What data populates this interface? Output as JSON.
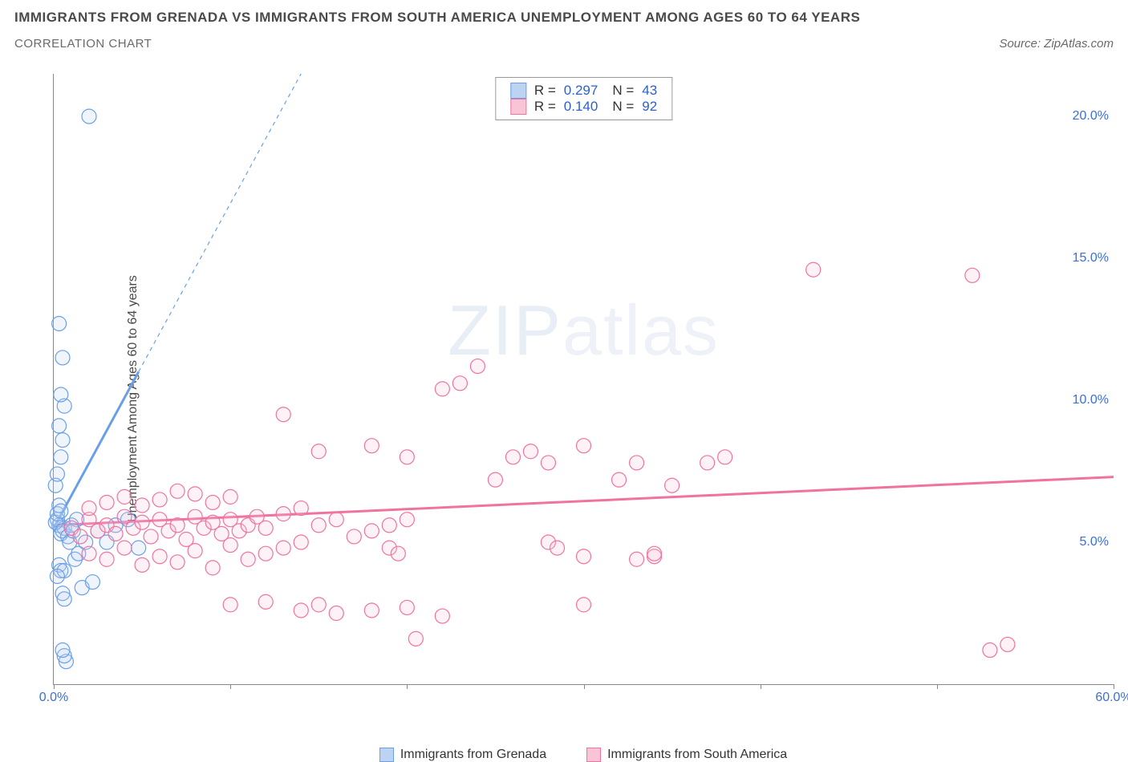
{
  "title": "IMMIGRANTS FROM GRENADA VS IMMIGRANTS FROM SOUTH AMERICA UNEMPLOYMENT AMONG AGES 60 TO 64 YEARS",
  "subtitle": "CORRELATION CHART",
  "source": "Source: ZipAtlas.com",
  "ylabel": "Unemployment Among Ages 60 to 64 years",
  "watermark_a": "ZIP",
  "watermark_b": "atlas",
  "chart": {
    "type": "scatter",
    "xlim": [
      0,
      60
    ],
    "ylim": [
      0,
      21.5
    ],
    "xticks": [
      0,
      10,
      20,
      30,
      40,
      50,
      60
    ],
    "xtick_labels": [
      "0.0%",
      "",
      "",
      "",
      "",
      "",
      "60.0%"
    ],
    "yticks": [
      5,
      10,
      15,
      20
    ],
    "ytick_labels": [
      "5.0%",
      "10.0%",
      "15.0%",
      "20.0%"
    ],
    "background_color": "#ffffff",
    "axis_color": "#888888",
    "tick_label_color": "#3b6fd6",
    "marker_radius": 9,
    "series": [
      {
        "name": "Immigrants from Grenada",
        "color": "#6a9fe8",
        "fill": "#bcd3f2",
        "stats": {
          "R": "0.297",
          "N": "43"
        },
        "trend": {
          "x1": 0,
          "y1": 5.5,
          "x2": 4.8,
          "y2": 11.0,
          "dash_to_x": 14,
          "dash_to_y": 21.5
        },
        "points": [
          [
            0.3,
            5.6
          ],
          [
            0.4,
            5.3
          ],
          [
            0.2,
            5.8
          ],
          [
            0.6,
            5.5
          ],
          [
            0.1,
            5.7
          ],
          [
            0.5,
            5.4
          ],
          [
            0.3,
            4.2
          ],
          [
            0.4,
            4.0
          ],
          [
            0.6,
            4.0
          ],
          [
            0.2,
            3.8
          ],
          [
            0.5,
            3.2
          ],
          [
            0.6,
            3.0
          ],
          [
            0.2,
            6.0
          ],
          [
            0.3,
            6.3
          ],
          [
            0.4,
            6.1
          ],
          [
            0.1,
            7.0
          ],
          [
            0.2,
            7.4
          ],
          [
            0.4,
            8.0
          ],
          [
            0.5,
            8.6
          ],
          [
            0.3,
            9.1
          ],
          [
            0.6,
            9.8
          ],
          [
            0.4,
            10.2
          ],
          [
            0.5,
            11.5
          ],
          [
            0.3,
            12.7
          ],
          [
            0.7,
            0.8
          ],
          [
            0.6,
            1.0
          ],
          [
            0.5,
            1.2
          ],
          [
            1.2,
            4.4
          ],
          [
            1.4,
            4.6
          ],
          [
            1.6,
            3.4
          ],
          [
            1.8,
            5.0
          ],
          [
            2.2,
            3.6
          ],
          [
            2.5,
            5.4
          ],
          [
            3.0,
            5.0
          ],
          [
            3.5,
            5.6
          ],
          [
            4.2,
            5.8
          ],
          [
            4.8,
            4.8
          ],
          [
            2.0,
            20.0
          ],
          [
            0.8,
            5.2
          ],
          [
            1.0,
            5.6
          ],
          [
            1.3,
            5.8
          ],
          [
            0.9,
            5.0
          ],
          [
            1.1,
            5.4
          ]
        ]
      },
      {
        "name": "Immigrants from South America",
        "color": "#f072a0",
        "fill": "#f9c4d6",
        "stats": {
          "R": "0.140",
          "N": "92"
        },
        "trend": {
          "x1": 0,
          "y1": 5.6,
          "x2": 60,
          "y2": 7.3
        },
        "points": [
          [
            1,
            5.5
          ],
          [
            1.5,
            5.2
          ],
          [
            2,
            5.8
          ],
          [
            2.5,
            5.4
          ],
          [
            3,
            5.6
          ],
          [
            3.5,
            5.3
          ],
          [
            4,
            5.9
          ],
          [
            4.5,
            5.5
          ],
          [
            5,
            5.7
          ],
          [
            5.5,
            5.2
          ],
          [
            6,
            5.8
          ],
          [
            6.5,
            5.4
          ],
          [
            7,
            5.6
          ],
          [
            7.5,
            5.1
          ],
          [
            8,
            5.9
          ],
          [
            8.5,
            5.5
          ],
          [
            9,
            5.7
          ],
          [
            9.5,
            5.3
          ],
          [
            10,
            5.8
          ],
          [
            10.5,
            5.4
          ],
          [
            11,
            5.6
          ],
          [
            11.5,
            5.9
          ],
          [
            12,
            5.5
          ],
          [
            2,
            6.2
          ],
          [
            3,
            6.4
          ],
          [
            4,
            6.6
          ],
          [
            5,
            6.3
          ],
          [
            6,
            6.5
          ],
          [
            7,
            6.8
          ],
          [
            8,
            6.7
          ],
          [
            9,
            6.4
          ],
          [
            10,
            6.6
          ],
          [
            2,
            4.6
          ],
          [
            3,
            4.4
          ],
          [
            4,
            4.8
          ],
          [
            5,
            4.2
          ],
          [
            6,
            4.5
          ],
          [
            7,
            4.3
          ],
          [
            8,
            4.7
          ],
          [
            9,
            4.1
          ],
          [
            10,
            4.9
          ],
          [
            11,
            4.4
          ],
          [
            12,
            4.6
          ],
          [
            13,
            4.8
          ],
          [
            14,
            5.0
          ],
          [
            15,
            5.6
          ],
          [
            16,
            5.8
          ],
          [
            17,
            5.2
          ],
          [
            18,
            5.4
          ],
          [
            19,
            5.6
          ],
          [
            20,
            5.8
          ],
          [
            13,
            9.5
          ],
          [
            15,
            8.2
          ],
          [
            18,
            8.4
          ],
          [
            20,
            8.0
          ],
          [
            22,
            10.4
          ],
          [
            23,
            10.6
          ],
          [
            25,
            7.2
          ],
          [
            26,
            8.0
          ],
          [
            27,
            8.2
          ],
          [
            28,
            7.8
          ],
          [
            30,
            8.4
          ],
          [
            32,
            7.2
          ],
          [
            33,
            7.8
          ],
          [
            34,
            4.5
          ],
          [
            35,
            7.0
          ],
          [
            37,
            7.8
          ],
          [
            38,
            8.0
          ],
          [
            24,
            11.2
          ],
          [
            10,
            2.8
          ],
          [
            12,
            2.9
          ],
          [
            14,
            2.6
          ],
          [
            15,
            2.8
          ],
          [
            16,
            2.5
          ],
          [
            18,
            2.6
          ],
          [
            20,
            2.7
          ],
          [
            22,
            2.4
          ],
          [
            13,
            6.0
          ],
          [
            14,
            6.2
          ],
          [
            19,
            4.8
          ],
          [
            19.5,
            4.6
          ],
          [
            20.5,
            1.6
          ],
          [
            30,
            2.8
          ],
          [
            30,
            4.5
          ],
          [
            33,
            4.4
          ],
          [
            34,
            4.6
          ],
          [
            43,
            14.6
          ],
          [
            52,
            14.4
          ],
          [
            53,
            1.2
          ],
          [
            54,
            1.4
          ],
          [
            28,
            5.0
          ],
          [
            28.5,
            4.8
          ]
        ]
      }
    ]
  },
  "legend": {
    "series_a": "Immigrants from Grenada",
    "series_b": "Immigrants from South America"
  }
}
